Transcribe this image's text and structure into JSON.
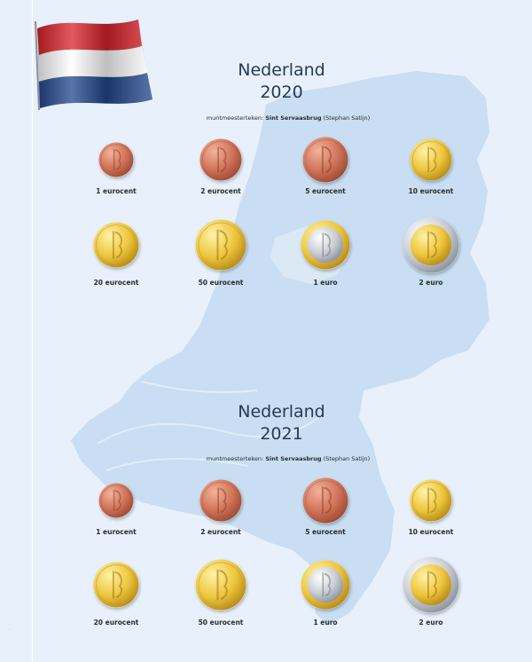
{
  "sections": [
    {
      "country": "Nederland",
      "year": "2020",
      "mintmaster_label": "muntmeesterteken:",
      "mintmaster_name": "Sint Servaasbrug",
      "mintmaster_note": "(Stephan Satijn)",
      "coins": [
        {
          "label": "1 eurocent",
          "metal": "copper"
        },
        {
          "label": "2 eurocent",
          "metal": "copper"
        },
        {
          "label": "5 eurocent",
          "metal": "copper"
        },
        {
          "label": "10 eurocent",
          "metal": "gold"
        },
        {
          "label": "20 eurocent",
          "metal": "gold"
        },
        {
          "label": "50 eurocent",
          "metal": "gold"
        },
        {
          "label": "1 euro",
          "metal": "bimetal-silver-center"
        },
        {
          "label": "2 euro",
          "metal": "bimetal-gold-center"
        }
      ]
    },
    {
      "country": "Nederland",
      "year": "2021",
      "mintmaster_label": "muntmeesterteken:",
      "mintmaster_name": "Sint Servaasbrug",
      "mintmaster_note": "(Stephan Satijn)",
      "coins": [
        {
          "label": "1 eurocent",
          "metal": "copper"
        },
        {
          "label": "2 eurocent",
          "metal": "copper"
        },
        {
          "label": "5 eurocent",
          "metal": "copper"
        },
        {
          "label": "10 eurocent",
          "metal": "gold"
        },
        {
          "label": "20 eurocent",
          "metal": "gold"
        },
        {
          "label": "50 eurocent",
          "metal": "gold"
        },
        {
          "label": "1 euro",
          "metal": "bimetal-silver-center"
        },
        {
          "label": "2 euro",
          "metal": "bimetal-gold-center"
        }
      ]
    }
  ],
  "flag_colors": {
    "red": "#d8232a",
    "white": "#ffffff",
    "blue": "#21468b"
  },
  "colors": {
    "background": "#e8f1fb",
    "map": "#c9def3",
    "title": "#243a56"
  }
}
